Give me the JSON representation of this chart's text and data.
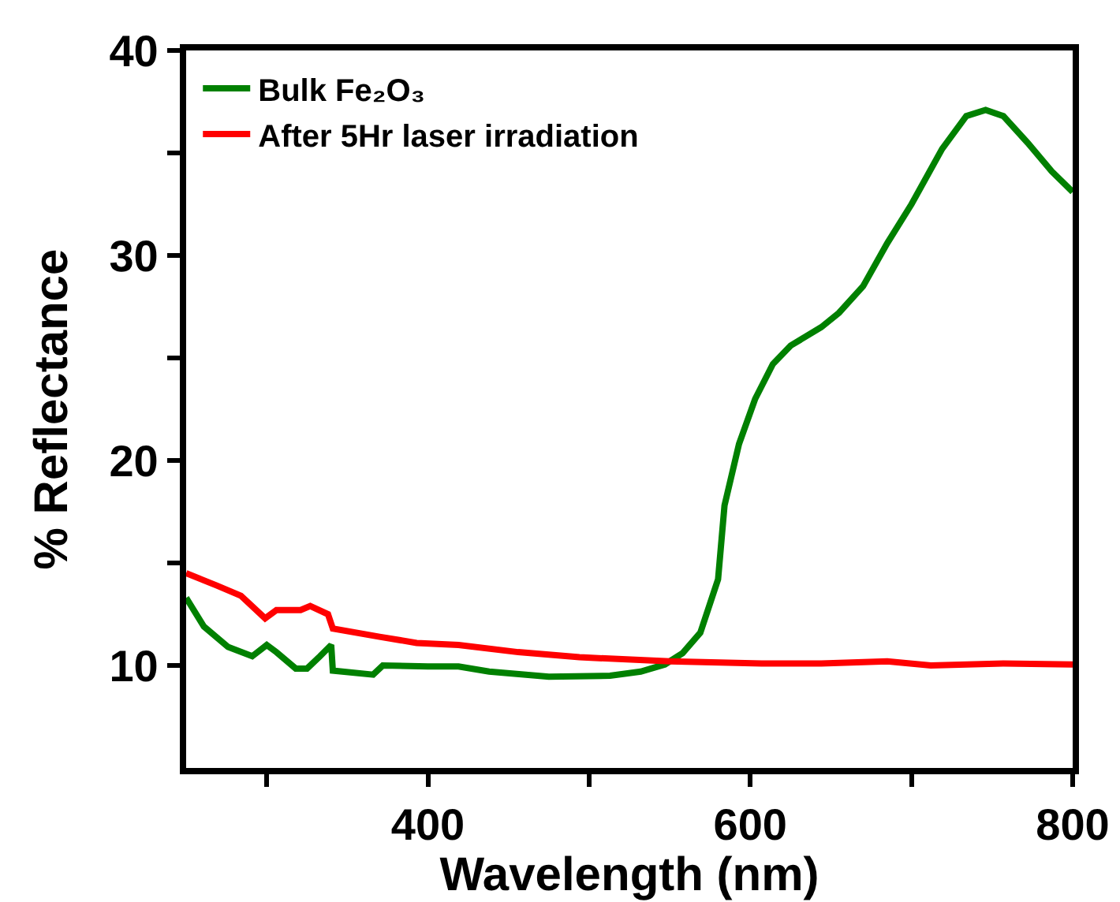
{
  "chart_data": {
    "type": "line",
    "xlabel": "Wavelength (nm)",
    "ylabel": "% Reflectance",
    "xlim": [
      250,
      800
    ],
    "xticks": [
      {
        "value": 300,
        "label": null
      },
      400,
      {
        "value": 500,
        "label": null
      },
      600,
      {
        "value": 700,
        "label": null
      },
      800
    ],
    "ylim": [
      5,
      40
    ],
    "yticks": [
      10,
      {
        "value": 15,
        "label": null
      },
      20,
      {
        "value": 25,
        "label": null
      },
      30,
      {
        "value": 35,
        "label": null
      },
      40
    ],
    "grid": false,
    "legend": "top left",
    "line_style": "solid",
    "marker": "none",
    "series": [
      {
        "name": "Bulk Fe₂O₃",
        "color": "#008000",
        "x": [
          250,
          261,
          276,
          291,
          300,
          306,
          318,
          325,
          333,
          340,
          341,
          366,
          372,
          400,
          419,
          438,
          475,
          513,
          532,
          547,
          558,
          569,
          580,
          584,
          593,
          603,
          614,
          625,
          644,
          655,
          670,
          685,
          700,
          719,
          734,
          746,
          757,
          772,
          787,
          800
        ],
        "values": [
          13.3,
          11.9,
          10.9,
          10.45,
          11.0,
          10.65,
          9.85,
          9.85,
          10.45,
          11.0,
          9.75,
          9.55,
          10.0,
          9.95,
          9.95,
          9.7,
          9.45,
          9.5,
          9.7,
          10.05,
          10.6,
          11.6,
          14.2,
          17.8,
          20.8,
          23.0,
          24.7,
          25.6,
          26.5,
          27.2,
          28.5,
          30.6,
          32.5,
          35.2,
          36.8,
          37.1,
          36.8,
          35.5,
          34.1,
          33.1
        ]
      },
      {
        "name": "After 5Hr laser irradiation",
        "color": "#ff0000",
        "x": [
          250,
          269,
          284,
          299,
          306,
          321,
          327,
          338,
          341,
          370,
          393,
          419,
          456,
          494,
          550,
          607,
          644,
          685,
          712,
          757,
          800
        ],
        "values": [
          14.5,
          13.9,
          13.4,
          12.3,
          12.7,
          12.7,
          12.9,
          12.5,
          11.8,
          11.4,
          11.1,
          11.0,
          10.65,
          10.4,
          10.2,
          10.1,
          10.1,
          10.2,
          10.0,
          10.1,
          10.05
        ]
      }
    ]
  }
}
